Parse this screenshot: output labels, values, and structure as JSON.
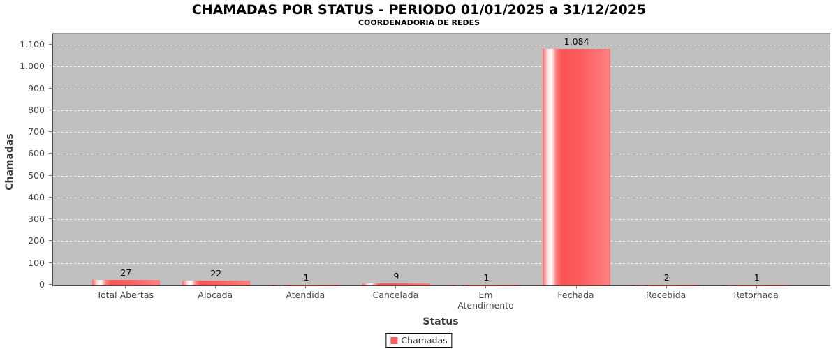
{
  "title": "CHAMADAS POR STATUS - PERIODO 01/01/2025 a 31/12/2025",
  "subtitle": "COORDENADORIA DE REDES",
  "chart_data": {
    "type": "bar",
    "title": "CHAMADAS POR STATUS - PERIODO 01/01/2025 a 31/12/2025",
    "subtitle": "COORDENADORIA DE REDES",
    "xlabel": "Status",
    "ylabel": "Chamadas",
    "categories": [
      "Total Abertas",
      "Alocada",
      "Atendida",
      "Cancelada",
      "Em Atendimento",
      "Fechada",
      "Recebida",
      "Retornada"
    ],
    "values": [
      27,
      22,
      1,
      9,
      1,
      1084,
      2,
      1
    ],
    "value_labels": [
      "27",
      "22",
      "1",
      "9",
      "1",
      "1.084",
      "2",
      "1"
    ],
    "series_name": "Chamadas",
    "ylim": [
      0,
      1100
    ],
    "ytick_interval": 100,
    "yticks": [
      0,
      100,
      200,
      300,
      400,
      500,
      600,
      700,
      800,
      900,
      1000,
      1100
    ],
    "ytick_labels": [
      "0",
      "100",
      "200",
      "300",
      "400",
      "500",
      "600",
      "700",
      "800",
      "900",
      "1.000",
      "1.100"
    ],
    "grid": "horizontal-dashed",
    "legend_position": "bottom"
  },
  "legend": {
    "label": "Chamadas"
  },
  "colors": {
    "bar_main": "#f85c5c",
    "bar_highlight": "#ffffff",
    "plot_background": "#c0c0c0",
    "grid_line": "#ffffff",
    "axis_line": "#4a4a4a",
    "legend_swatch": "#f85c5c"
  }
}
